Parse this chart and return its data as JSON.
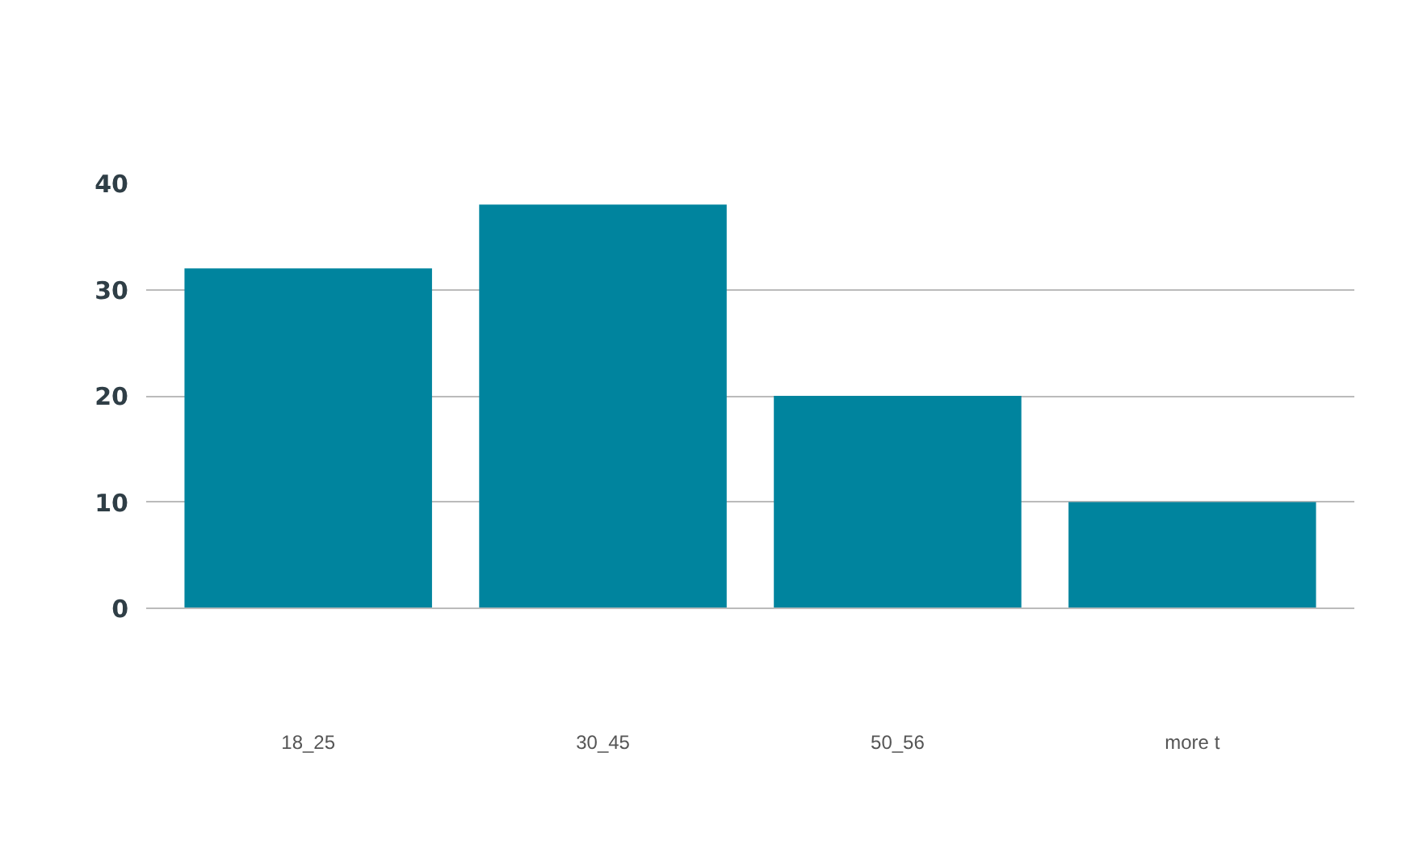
{
  "chart_data": {
    "type": "bar",
    "categories": [
      "18_25",
      "30_45",
      "50_56",
      "more t"
    ],
    "values": [
      32,
      38,
      20,
      10
    ],
    "color": "#00849e",
    "ylim": [
      0,
      40
    ],
    "yticks": [
      0,
      10,
      20,
      30,
      40
    ],
    "grid": "y"
  }
}
